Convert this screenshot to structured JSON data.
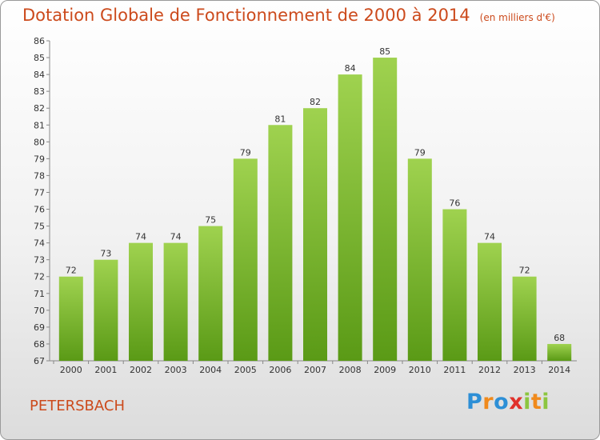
{
  "chart_data": {
    "type": "bar",
    "title": "Dotation Globale de Fonctionnement de 2000 à 2014",
    "subtitle": "(en milliers d'€)",
    "categories": [
      "2000",
      "2001",
      "2002",
      "2003",
      "2004",
      "2005",
      "2006",
      "2007",
      "2008",
      "2009",
      "2010",
      "2011",
      "2012",
      "2013",
      "2014"
    ],
    "values": [
      72,
      73,
      74,
      74,
      75,
      79,
      81,
      82,
      84,
      85,
      79,
      76,
      74,
      72,
      68
    ],
    "ylim": [
      67,
      86
    ],
    "yticks": [
      67,
      68,
      69,
      70,
      71,
      72,
      73,
      74,
      75,
      76,
      77,
      78,
      79,
      80,
      81,
      82,
      83,
      84,
      85,
      86
    ],
    "grid": false,
    "bar_color_top": "#9fd24f",
    "bar_color_bottom": "#5a9a16"
  },
  "footer": {
    "town": "PETERSBACH",
    "logo_letters": [
      "P",
      "r",
      "o",
      "x",
      "i",
      "t",
      "i"
    ],
    "logo_colors": [
      "#2d8fd6",
      "#f08a1c",
      "#2d8fd6",
      "#e0312b",
      "#8cc63f",
      "#f08a1c",
      "#8cc63f"
    ]
  }
}
